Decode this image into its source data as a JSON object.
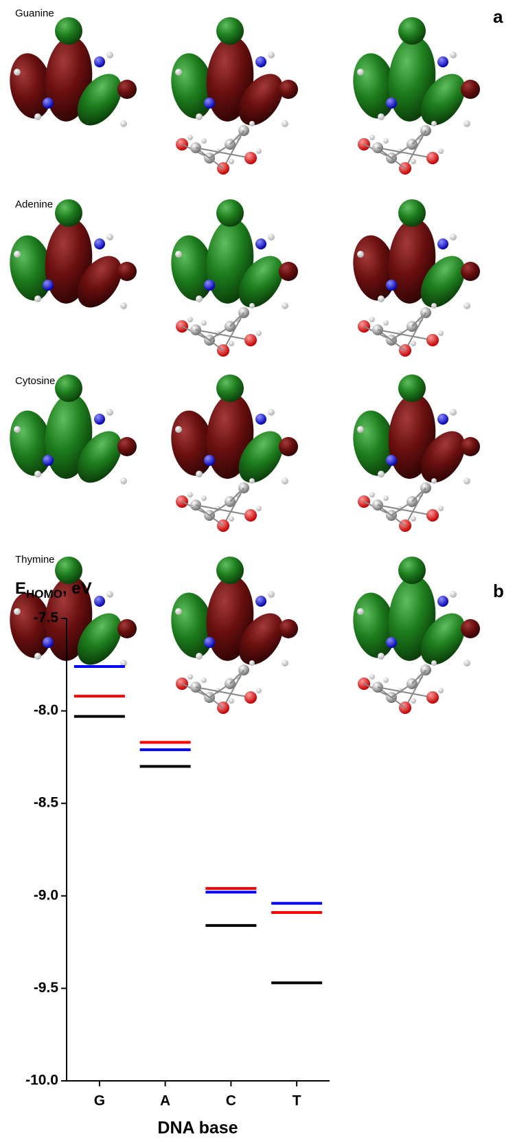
{
  "panel_a": {
    "label": "a",
    "rows": [
      "Guanine",
      "Adenine",
      "Cytosine",
      "Thymine"
    ]
  },
  "chart_data": {
    "type": "hline",
    "panel_label": "b",
    "ylabel_parts": [
      "E",
      "HOMO",
      ", eV"
    ],
    "xlabel": "DNA base",
    "categories": [
      "G",
      "A",
      "C",
      "T"
    ],
    "series": [
      {
        "color": "#000000",
        "values": [
          -8.03,
          -8.3,
          -9.16,
          -9.47
        ]
      },
      {
        "color": "#ff0000",
        "values": [
          -7.92,
          -8.17,
          -8.96,
          -9.09
        ]
      },
      {
        "color": "#0000ff",
        "values": [
          -7.76,
          -8.21,
          -8.98,
          -9.04
        ]
      }
    ],
    "ylim": [
      -10.0,
      -7.5
    ],
    "yticks": [
      {
        "value": -10,
        "label": "-10.0"
      },
      -9.5,
      {
        "value": -9,
        "label": "-9.0"
      },
      -8.5,
      {
        "value": -8,
        "label": "-8.0"
      },
      -7.5
    ]
  }
}
